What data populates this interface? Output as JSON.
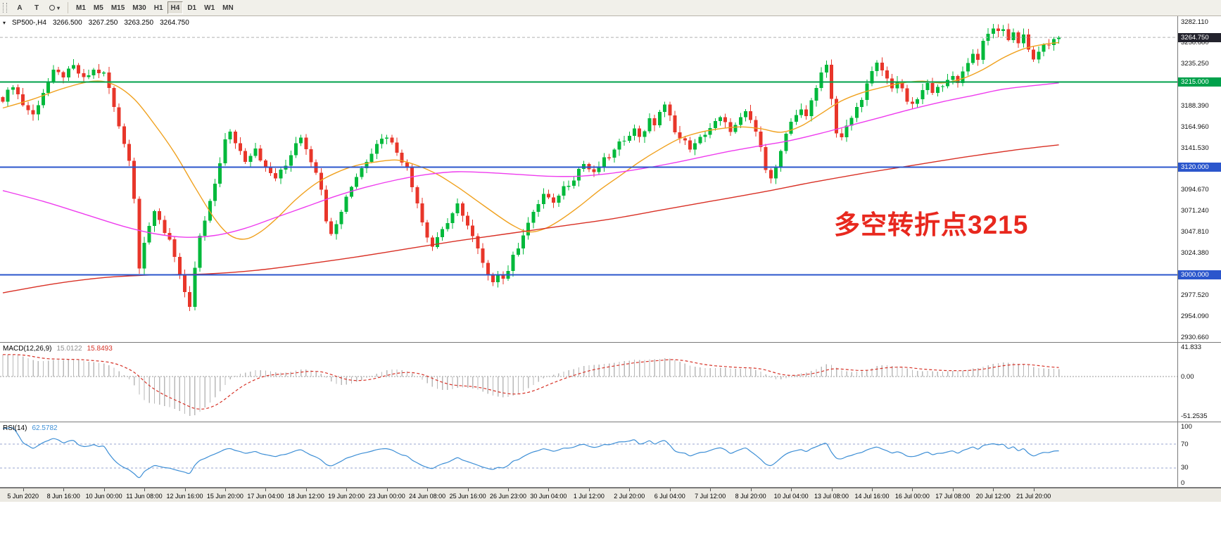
{
  "toolbar": {
    "tool_buttons": [
      {
        "label": "A"
      },
      {
        "label": "T"
      }
    ],
    "timeframes": [
      "M1",
      "M5",
      "M15",
      "M30",
      "H1",
      "H4",
      "D1",
      "W1",
      "MN"
    ],
    "active_timeframe": "H4"
  },
  "chart": {
    "header": {
      "symbol_period": "SP500-,H4",
      "open": "3266.500",
      "high": "3267.250",
      "low": "3263.250",
      "close": "3264.750"
    },
    "annotation": {
      "text": "多空转折点3215",
      "color": "#e8281e"
    }
  },
  "chart_data": {
    "type": "candlestick",
    "symbol": "SP500-",
    "timeframe": "H4",
    "bars": 210,
    "bar_spacing": 7.18,
    "colors": {
      "bull": "#00b93b",
      "bear": "#e8362a",
      "background": "#ffffff"
    },
    "y_axis": {
      "values": [
        3282.11,
        3258.68,
        3235.25,
        3211.82,
        3188.39,
        3164.96,
        3141.53,
        3118.1,
        3094.67,
        3071.24,
        3047.81,
        3024.38,
        3000.95,
        2977.52,
        2954.09,
        2930.66
      ]
    },
    "x_labels": [
      "5 Jun 2020",
      "8 Jun 16:00",
      "10 Jun 00:00",
      "11 Jun 08:00",
      "12 Jun 16:00",
      "15 Jun 20:00",
      "17 Jun 04:00",
      "18 Jun 12:00",
      "19 Jun 20:00",
      "23 Jun 00:00",
      "24 Jun 08:00",
      "25 Jun 16:00",
      "26 Jun 23:00",
      "30 Jun 04:00",
      "1 Jul 12:00",
      "2 Jul 20:00",
      "6 Jul 04:00",
      "7 Jul 12:00",
      "8 Jul 20:00",
      "10 Jul 04:00",
      "13 Jul 08:00",
      "14 Jul 16:00",
      "16 Jul 00:00",
      "17 Jul 08:00",
      "20 Jul 12:00",
      "21 Jul 20:00"
    ],
    "close_waypoints": [
      [
        0,
        3196
      ],
      [
        2,
        3212
      ],
      [
        4,
        3190
      ],
      [
        6,
        3178
      ],
      [
        8,
        3204
      ],
      [
        10,
        3226
      ],
      [
        12,
        3222
      ],
      [
        14,
        3232
      ],
      [
        16,
        3218
      ],
      [
        18,
        3228
      ],
      [
        20,
        3224
      ],
      [
        21,
        3208
      ],
      [
        22,
        3186
      ],
      [
        23,
        3166
      ],
      [
        24,
        3148
      ],
      [
        25,
        3128
      ],
      [
        26,
        3085
      ],
      [
        27,
        3010
      ],
      [
        28,
        3038
      ],
      [
        29,
        3055
      ],
      [
        30,
        3068
      ],
      [
        31,
        3060
      ],
      [
        32,
        3048
      ],
      [
        33,
        3040
      ],
      [
        34,
        3022
      ],
      [
        35,
        3000
      ],
      [
        36,
        2978
      ],
      [
        37,
        2962
      ],
      [
        38,
        3008
      ],
      [
        39,
        3042
      ],
      [
        40,
        3060
      ],
      [
        41,
        3080
      ],
      [
        42,
        3102
      ],
      [
        43,
        3126
      ],
      [
        44,
        3150
      ],
      [
        45,
        3158
      ],
      [
        46,
        3148
      ],
      [
        47,
        3138
      ],
      [
        48,
        3128
      ],
      [
        50,
        3142
      ],
      [
        52,
        3118
      ],
      [
        54,
        3108
      ],
      [
        56,
        3122
      ],
      [
        58,
        3148
      ],
      [
        59,
        3155
      ],
      [
        60,
        3142
      ],
      [
        61,
        3128
      ],
      [
        62,
        3112
      ],
      [
        63,
        3098
      ],
      [
        64,
        3062
      ],
      [
        65,
        3048
      ],
      [
        66,
        3056
      ],
      [
        68,
        3088
      ],
      [
        70,
        3110
      ],
      [
        72,
        3128
      ],
      [
        74,
        3148
      ],
      [
        76,
        3155
      ],
      [
        78,
        3138
      ],
      [
        80,
        3118
      ],
      [
        81,
        3098
      ],
      [
        82,
        3082
      ],
      [
        83,
        3060
      ],
      [
        84,
        3044
      ],
      [
        85,
        3032
      ],
      [
        86,
        3042
      ],
      [
        87,
        3052
      ],
      [
        88,
        3058
      ],
      [
        89,
        3066
      ],
      [
        90,
        3078
      ],
      [
        91,
        3068
      ],
      [
        92,
        3055
      ],
      [
        93,
        3042
      ],
      [
        94,
        3028
      ],
      [
        95,
        3012
      ],
      [
        96,
        2998
      ],
      [
        97,
        2994
      ],
      [
        98,
        3002
      ],
      [
        99,
        2996
      ],
      [
        100,
        3006
      ],
      [
        101,
        3020
      ],
      [
        102,
        3032
      ],
      [
        103,
        3046
      ],
      [
        104,
        3058
      ],
      [
        105,
        3068
      ],
      [
        106,
        3080
      ],
      [
        107,
        3090
      ],
      [
        108,
        3085
      ],
      [
        109,
        3078
      ],
      [
        110,
        3090
      ],
      [
        111,
        3098
      ],
      [
        112,
        3102
      ],
      [
        113,
        3108
      ],
      [
        114,
        3118
      ],
      [
        115,
        3124
      ],
      [
        116,
        3118
      ],
      [
        117,
        3112
      ],
      [
        118,
        3120
      ],
      [
        119,
        3128
      ],
      [
        120,
        3132
      ],
      [
        121,
        3138
      ],
      [
        122,
        3146
      ],
      [
        123,
        3152
      ],
      [
        124,
        3158
      ],
      [
        125,
        3162
      ],
      [
        126,
        3155
      ],
      [
        127,
        3162
      ],
      [
        128,
        3172
      ],
      [
        129,
        3168
      ],
      [
        130,
        3182
      ],
      [
        131,
        3188
      ],
      [
        132,
        3176
      ],
      [
        133,
        3162
      ],
      [
        134,
        3152
      ],
      [
        135,
        3148
      ],
      [
        136,
        3142
      ],
      [
        137,
        3145
      ],
      [
        138,
        3152
      ],
      [
        139,
        3158
      ],
      [
        140,
        3164
      ],
      [
        141,
        3170
      ],
      [
        142,
        3174
      ],
      [
        143,
        3168
      ],
      [
        144,
        3162
      ],
      [
        145,
        3166
      ],
      [
        146,
        3174
      ],
      [
        147,
        3180
      ],
      [
        148,
        3172
      ],
      [
        149,
        3160
      ],
      [
        150,
        3140
      ],
      [
        151,
        3120
      ],
      [
        152,
        3110
      ],
      [
        153,
        3118
      ],
      [
        154,
        3138
      ],
      [
        155,
        3155
      ],
      [
        156,
        3168
      ],
      [
        157,
        3178
      ],
      [
        158,
        3186
      ],
      [
        159,
        3178
      ],
      [
        160,
        3192
      ],
      [
        161,
        3208
      ],
      [
        162,
        3228
      ],
      [
        163,
        3234
      ],
      [
        164,
        3198
      ],
      [
        165,
        3158
      ],
      [
        166,
        3152
      ],
      [
        167,
        3165
      ],
      [
        168,
        3175
      ],
      [
        169,
        3186
      ],
      [
        170,
        3198
      ],
      [
        171,
        3212
      ],
      [
        172,
        3225
      ],
      [
        173,
        3235
      ],
      [
        174,
        3228
      ],
      [
        175,
        3218
      ],
      [
        176,
        3210
      ],
      [
        177,
        3216
      ],
      [
        178,
        3205
      ],
      [
        179,
        3194
      ],
      [
        180,
        3188
      ],
      [
        181,
        3196
      ],
      [
        182,
        3205
      ],
      [
        183,
        3212
      ],
      [
        184,
        3206
      ],
      [
        185,
        3212
      ],
      [
        186,
        3208
      ],
      [
        187,
        3216
      ],
      [
        188,
        3222
      ],
      [
        189,
        3216
      ],
      [
        190,
        3226
      ],
      [
        191,
        3238
      ],
      [
        192,
        3246
      ],
      [
        193,
        3242
      ],
      [
        194,
        3258
      ],
      [
        195,
        3268
      ],
      [
        196,
        3276
      ],
      [
        197,
        3270
      ],
      [
        198,
        3276
      ],
      [
        199,
        3262
      ],
      [
        200,
        3270
      ],
      [
        201,
        3260
      ],
      [
        202,
        3268
      ],
      [
        203,
        3252
      ],
      [
        204,
        3238
      ],
      [
        205,
        3248
      ],
      [
        206,
        3258
      ],
      [
        207,
        3254
      ],
      [
        208,
        3260
      ],
      [
        209,
        3264.75
      ]
    ],
    "prehistory": {
      "bars": 130,
      "start": 2620,
      "end": 3195
    },
    "moving_averages": [
      {
        "name": "fast",
        "color": "#f0a11e",
        "points": [
          [
            0,
            3186
          ],
          [
            6,
            3196
          ],
          [
            12,
            3208
          ],
          [
            18,
            3216
          ],
          [
            22,
            3212
          ],
          [
            26,
            3196
          ],
          [
            30,
            3168
          ],
          [
            34,
            3136
          ],
          [
            38,
            3098
          ],
          [
            42,
            3062
          ],
          [
            45,
            3044
          ],
          [
            48,
            3040
          ],
          [
            51,
            3048
          ],
          [
            54,
            3062
          ],
          [
            58,
            3084
          ],
          [
            62,
            3102
          ],
          [
            66,
            3114
          ],
          [
            70,
            3122
          ],
          [
            74,
            3126
          ],
          [
            78,
            3128
          ],
          [
            82,
            3122
          ],
          [
            86,
            3112
          ],
          [
            90,
            3098
          ],
          [
            94,
            3082
          ],
          [
            98,
            3066
          ],
          [
            101,
            3055
          ],
          [
            104,
            3048
          ],
          [
            107,
            3051
          ],
          [
            110,
            3060
          ],
          [
            114,
            3076
          ],
          [
            118,
            3094
          ],
          [
            122,
            3110
          ],
          [
            126,
            3126
          ],
          [
            130,
            3140
          ],
          [
            134,
            3152
          ],
          [
            138,
            3159
          ],
          [
            142,
            3163
          ],
          [
            146,
            3165
          ],
          [
            150,
            3163
          ],
          [
            154,
            3159
          ],
          [
            158,
            3166
          ],
          [
            162,
            3180
          ],
          [
            166,
            3194
          ],
          [
            170,
            3203
          ],
          [
            174,
            3209
          ],
          [
            178,
            3214
          ],
          [
            182,
            3216
          ],
          [
            186,
            3214
          ],
          [
            190,
            3219
          ],
          [
            194,
            3229
          ],
          [
            198,
            3242
          ],
          [
            202,
            3252
          ],
          [
            206,
            3257
          ],
          [
            209,
            3259
          ]
        ]
      },
      {
        "name": "medium",
        "color": "#ee3cee",
        "points": [
          [
            0,
            3094
          ],
          [
            8,
            3082
          ],
          [
            16,
            3068
          ],
          [
            24,
            3054
          ],
          [
            30,
            3046
          ],
          [
            36,
            3042
          ],
          [
            42,
            3044
          ],
          [
            48,
            3052
          ],
          [
            54,
            3064
          ],
          [
            60,
            3076
          ],
          [
            66,
            3088
          ],
          [
            72,
            3098
          ],
          [
            78,
            3106
          ],
          [
            84,
            3112
          ],
          [
            90,
            3115
          ],
          [
            96,
            3114
          ],
          [
            102,
            3112
          ],
          [
            108,
            3110
          ],
          [
            114,
            3110
          ],
          [
            120,
            3113
          ],
          [
            126,
            3118
          ],
          [
            132,
            3124
          ],
          [
            138,
            3131
          ],
          [
            144,
            3138
          ],
          [
            150,
            3144
          ],
          [
            156,
            3150
          ],
          [
            162,
            3158
          ],
          [
            168,
            3167
          ],
          [
            174,
            3176
          ],
          [
            180,
            3185
          ],
          [
            186,
            3193
          ],
          [
            192,
            3200
          ],
          [
            198,
            3207
          ],
          [
            204,
            3211
          ],
          [
            209,
            3214
          ]
        ]
      },
      {
        "name": "slow",
        "color": "#d93025",
        "points": [
          [
            0,
            2980
          ],
          [
            10,
            2990
          ],
          [
            20,
            2997
          ],
          [
            30,
            3000
          ],
          [
            40,
            3001
          ],
          [
            50,
            3005
          ],
          [
            60,
            3012
          ],
          [
            70,
            3020
          ],
          [
            80,
            3029
          ],
          [
            90,
            3038
          ],
          [
            100,
            3046
          ],
          [
            110,
            3054
          ],
          [
            120,
            3062
          ],
          [
            130,
            3072
          ],
          [
            140,
            3082
          ],
          [
            150,
            3092
          ],
          [
            160,
            3103
          ],
          [
            170,
            3113
          ],
          [
            180,
            3122
          ],
          [
            190,
            3131
          ],
          [
            200,
            3139
          ],
          [
            209,
            3145
          ]
        ]
      }
    ],
    "hlines": [
      {
        "price": 3215.0,
        "label": "3215.000",
        "color": "#00a14b"
      },
      {
        "price": 3120.0,
        "label": "3120.000",
        "color": "#2b56cc"
      },
      {
        "price": 3000.0,
        "label": "3000.000",
        "color": "#2b56cc"
      }
    ],
    "current_price": {
      "value": 3264.75,
      "label": "3264.750",
      "box_color": "#23232d"
    },
    "macd": {
      "label": "MACD(12,26,9)",
      "value_main": "15.0122",
      "value_signal": "15.8493",
      "axis_labels": [
        "41.833",
        "0.00",
        "-51.2535"
      ],
      "axis_max": 41.833,
      "axis_min": -51.2535,
      "hist_color": "#b9b9b9",
      "signal_color": "#d63227"
    },
    "rsi": {
      "label": "RSI(14)",
      "value": "62.5782",
      "axis_labels": [
        "100",
        "70",
        "30",
        "0"
      ],
      "levels": [
        70,
        30
      ],
      "line_color": "#3e8fd6",
      "level_color": "#9aa6d0"
    }
  }
}
